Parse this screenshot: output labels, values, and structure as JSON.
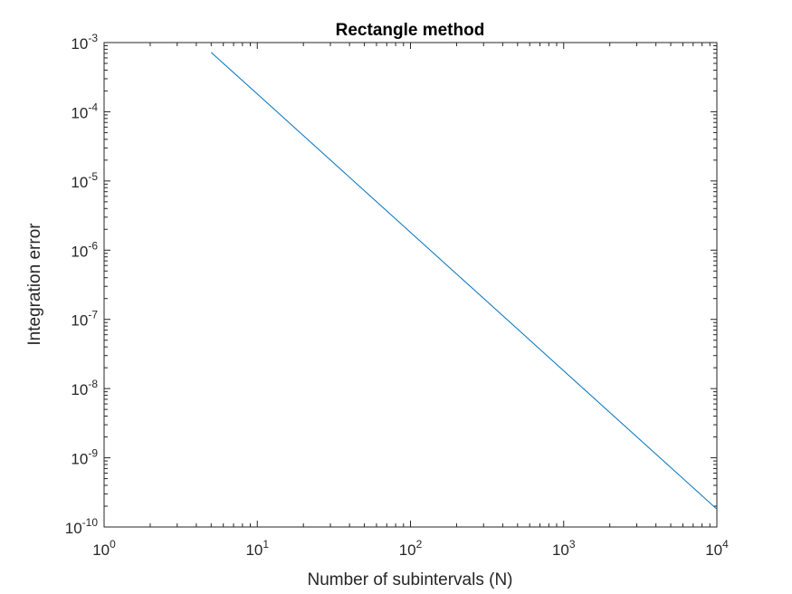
{
  "chart_data": {
    "type": "line",
    "title": "Rectangle method",
    "xlabel": "Number of subintervals (N)",
    "ylabel": "Integration error",
    "xscale": "log",
    "yscale": "log",
    "xlim": [
      1,
      10000
    ],
    "ylim": [
      1e-10,
      0.001
    ],
    "grid": false,
    "x_ticks": [
      {
        "value": 1,
        "base": "10",
        "exp": "0"
      },
      {
        "value": 10,
        "base": "10",
        "exp": "1"
      },
      {
        "value": 100,
        "base": "10",
        "exp": "2"
      },
      {
        "value": 1000,
        "base": "10",
        "exp": "3"
      },
      {
        "value": 10000,
        "base": "10",
        "exp": "4"
      }
    ],
    "y_ticks": [
      {
        "value": 1e-10,
        "base": "10",
        "exp": "-10"
      },
      {
        "value": 1e-09,
        "base": "10",
        "exp": "-9"
      },
      {
        "value": 1e-08,
        "base": "10",
        "exp": "-8"
      },
      {
        "value": 1e-07,
        "base": "10",
        "exp": "-7"
      },
      {
        "value": 1e-06,
        "base": "10",
        "exp": "-6"
      },
      {
        "value": 1e-05,
        "base": "10",
        "exp": "-5"
      },
      {
        "value": 0.0001,
        "base": "10",
        "exp": "-4"
      },
      {
        "value": 0.001,
        "base": "10",
        "exp": "-3"
      }
    ],
    "series": [
      {
        "color": "#0072BD",
        "x": [
          5,
          10,
          20,
          50,
          100,
          200,
          500,
          1000,
          2000,
          5000,
          10000
        ],
        "y": [
          0.00072,
          0.000181,
          4.52e-05,
          7.24e-06,
          1.81e-06,
          4.52e-07,
          7.24e-08,
          1.81e-08,
          4.52e-09,
          7.24e-10,
          1.81e-10
        ]
      }
    ]
  }
}
